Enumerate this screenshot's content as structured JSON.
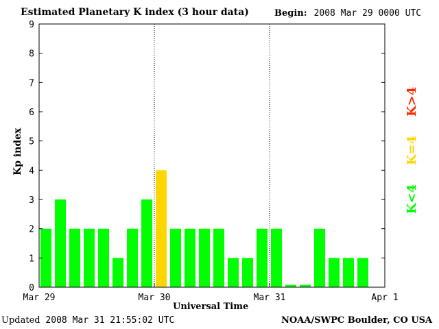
{
  "header": {
    "title": "Estimated Planetary K index (3 hour data)",
    "begin_label": "Begin:",
    "begin_value": "2008 Mar 29 0000 UTC"
  },
  "footer": {
    "updated_label": "Updated",
    "updated_value": "2008 Mar 31 21:55:02 UTC",
    "credit": "NOAA/SWPC Boulder, CO USA"
  },
  "legend": {
    "items": [
      {
        "label": "K<4",
        "color": "#00ff00"
      },
      {
        "label": "K=4",
        "color": "#ffd700"
      },
      {
        "label": "K>4",
        "color": "#ff2a00"
      }
    ]
  },
  "chart_data": {
    "type": "bar",
    "title": "Estimated Planetary K index (3 hour data)",
    "xlabel": "Universal Time",
    "ylabel": "Kp index",
    "ylim": [
      0,
      9
    ],
    "yticks": [
      "0",
      "1",
      "2",
      "3",
      "4",
      "5",
      "6",
      "7",
      "8",
      "9"
    ],
    "xticks": [
      "Mar 29",
      "Mar 30",
      "Mar 31",
      "Apr 1"
    ],
    "grid": false,
    "day_separators": [
      "Mar 30",
      "Mar 31"
    ],
    "values": [
      2,
      3,
      2,
      2,
      2,
      1,
      2,
      3,
      4,
      2,
      2,
      2,
      2,
      1,
      1,
      2,
      2,
      0,
      0,
      2,
      1,
      1,
      1
    ],
    "bar_colors": {
      "low": "#00ff00",
      "four": "#ffd700",
      "high": "#ff2a00"
    }
  }
}
